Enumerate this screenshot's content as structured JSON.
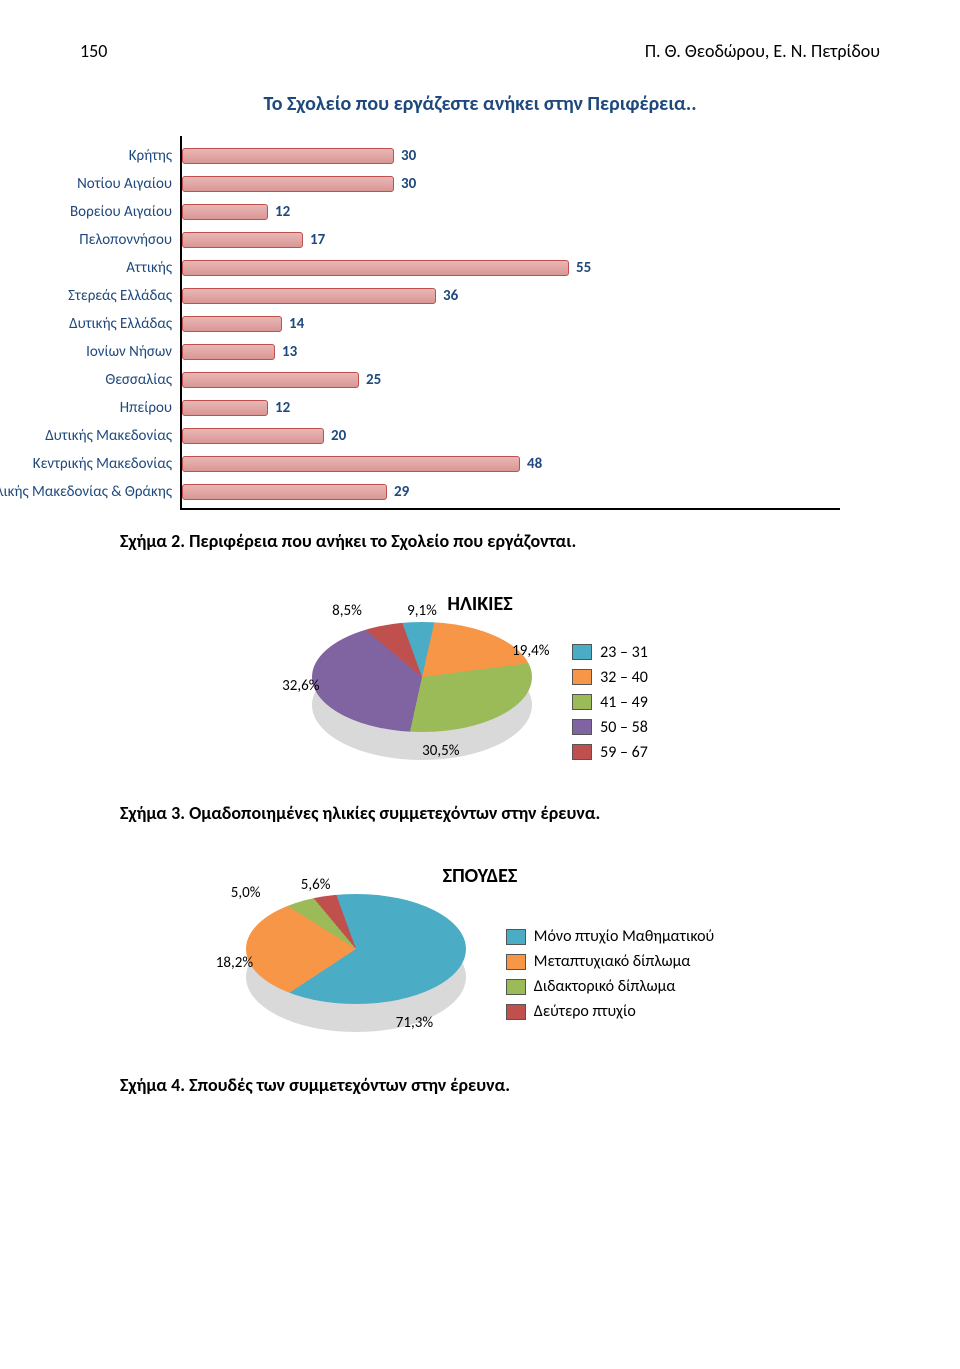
{
  "header": {
    "page_number": "150",
    "authors": "Π. Θ. Θεοδώρου,  Ε. Ν. Πετρίδου"
  },
  "bar_chart": {
    "type": "bar",
    "title": "Το Σχολείο που εργάζεστε ανήκει στην Περιφέρεια..",
    "xlim": 60,
    "bar_fill": "#d99694",
    "bar_border": "#c0504d",
    "value_color": "#1f497d",
    "label_color": "#1f497d",
    "rows": [
      {
        "label": "Κρήτης",
        "value": 30
      },
      {
        "label": "Νοτίου Αιγαίου",
        "value": 30
      },
      {
        "label": "Βορείου Αιγαίου",
        "value": 12
      },
      {
        "label": "Πελοποννήσου",
        "value": 17
      },
      {
        "label": "Αττικής",
        "value": 55
      },
      {
        "label": "Στερεάς Ελλάδας",
        "value": 36
      },
      {
        "label": "Δυτικής Ελλάδας",
        "value": 14
      },
      {
        "label": "Ιονίων Νήσων",
        "value": 13
      },
      {
        "label": "Θεσσαλίας",
        "value": 25
      },
      {
        "label": "Ηπείρου",
        "value": 12
      },
      {
        "label": "Δυτικής Μακεδονίας",
        "value": 20
      },
      {
        "label": "Κεντρικής Μακεδονίας",
        "value": 48
      },
      {
        "label": "Ανατολικής Μακεδονίας & Θράκης",
        "value": 29
      }
    ],
    "caption": "Σχήμα 2. Περιφέρεια  που ανήκει το Σχολείο που εργάζονται."
  },
  "pie_ages": {
    "type": "pie",
    "title": "ΗΛΙΚΙΕΣ",
    "slices": [
      {
        "label": "23 – 31",
        "value": 9.1,
        "label_text": "9,1%",
        "color": "#4bacc6"
      },
      {
        "label": "32 – 40",
        "value": 19.4,
        "label_text": "19,4%",
        "color": "#f79646"
      },
      {
        "label": "41 – 49",
        "value": 30.5,
        "label_text": "30,5%",
        "color": "#9bbb59"
      },
      {
        "label": "50 – 58",
        "value": 32.6,
        "label_text": "32,6%",
        "color": "#8064a2"
      },
      {
        "label": "59 – 67",
        "value": 8.5,
        "label_text": "8,5%",
        "color": "#c0504d"
      }
    ],
    "caption": "Σχήμα 3. Ομαδοποιημένες ηλικίες συμμετεχόντων στην έρευνα."
  },
  "pie_studies": {
    "type": "pie",
    "title": "ΣΠΟΥΔΕΣ",
    "slices": [
      {
        "label": "Μόνο πτυχίο Μαθηματικού",
        "value": 71.3,
        "label_text": "71,3%",
        "color": "#4bacc6"
      },
      {
        "label": "Μεταπτυχιακό δίπλωμα",
        "value": 18.2,
        "label_text": "18,2%",
        "color": "#f79646"
      },
      {
        "label": "Διδακτορικό δίπλωμα",
        "value": 5.0,
        "label_text": "5,0%",
        "color": "#9bbb59"
      },
      {
        "label": "Δεύτερο πτυχίο",
        "value": 5.6,
        "label_text": "5,6%",
        "color": "#c0504d"
      }
    ],
    "caption": "Σχήμα 4. Σπουδές των συμμετεχόντων στην έρευνα."
  }
}
